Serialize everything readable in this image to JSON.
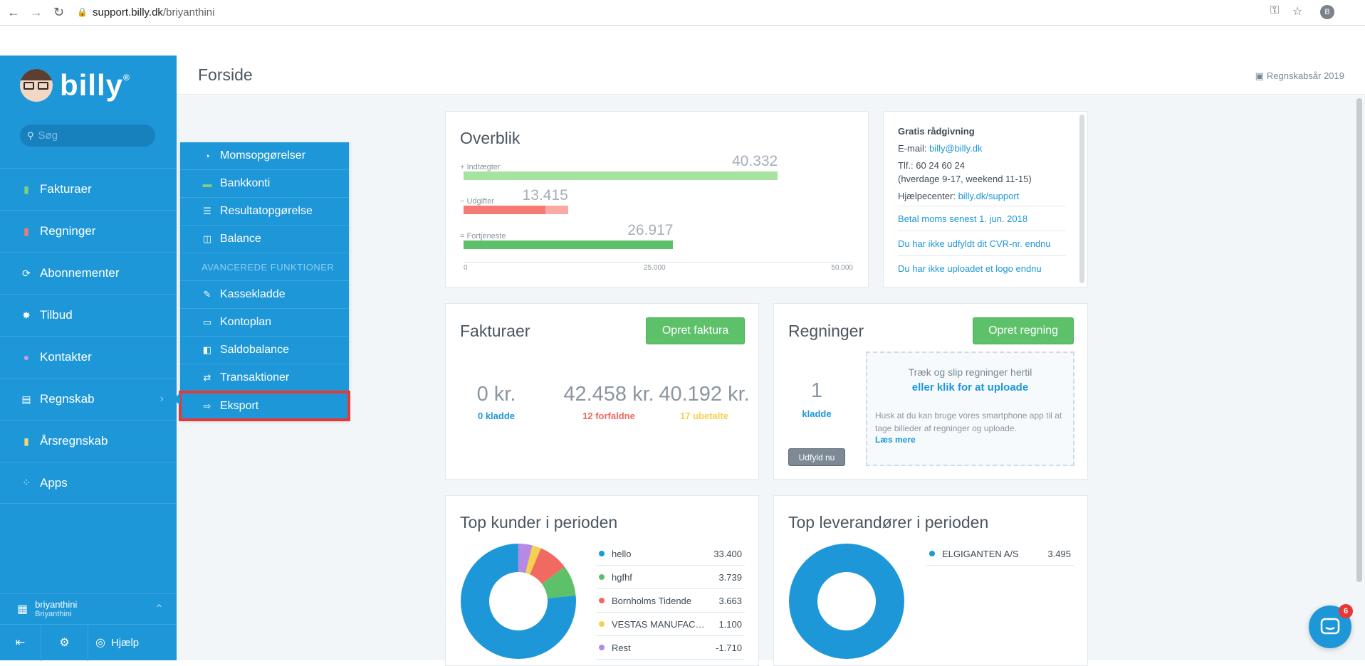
{
  "browser": {
    "url_host": "support.billy.dk",
    "url_path": "/briyanthini",
    "profile_initial": "B"
  },
  "sidebar": {
    "brand": "billy",
    "brand_mark": "®",
    "search_placeholder": "Søg",
    "items": [
      {
        "label": "Fakturaer",
        "icon": "document-icon",
        "color": "#7fd07a"
      },
      {
        "label": "Regninger",
        "icon": "receipt-icon",
        "color": "#f47a72"
      },
      {
        "label": "Abonnementer",
        "icon": "recurring-icon",
        "color": "#cfe8f6"
      },
      {
        "label": "Tilbud",
        "icon": "badge-icon",
        "color": "#ffffff"
      },
      {
        "label": "Kontakter",
        "icon": "person-icon",
        "color": "#c6a3e8"
      },
      {
        "label": "Regnskab",
        "icon": "ledger-icon",
        "color": "#cfe8f6"
      },
      {
        "label": "Årsregnskab",
        "icon": "annual-report-icon",
        "color": "#f7d572"
      },
      {
        "label": "Apps",
        "icon": "apps-icon",
        "color": "#cfe8f6"
      }
    ],
    "user": {
      "name": "briyanthini",
      "org": "Briyanthini"
    },
    "help_label": "Hjælp"
  },
  "flyout": {
    "items": [
      {
        "label": "Momsopgørelser",
        "icon": "pie-icon"
      },
      {
        "label": "Bankkonti",
        "icon": "bank-icon"
      },
      {
        "label": "Resultatopgørelse",
        "icon": "income-statement-icon"
      },
      {
        "label": "Balance",
        "icon": "balance-icon"
      }
    ],
    "section_header": "AVANCEREDE FUNKTIONER",
    "advanced": [
      {
        "label": "Kassekladde",
        "icon": "journal-icon"
      },
      {
        "label": "Kontoplan",
        "icon": "chart-of-accounts-icon"
      },
      {
        "label": "Saldobalance",
        "icon": "trial-balance-icon"
      },
      {
        "label": "Transaktioner",
        "icon": "transactions-icon"
      },
      {
        "label": "Eksport",
        "icon": "export-icon"
      }
    ]
  },
  "header": {
    "title": "Forside",
    "fiscal_year": "Regnskabsår 2019"
  },
  "overview": {
    "title": "Overblik",
    "rows": [
      {
        "sign": "+",
        "label": "Indtægter",
        "value": "40.332",
        "amount": 40332,
        "color": "#a6e3a1"
      },
      {
        "sign": "−",
        "label": "Udgifter",
        "value": "13.415",
        "amount": 13415,
        "color": "#f47a72",
        "paid_amount": 10500,
        "unpaid_color": "#f9aaa5"
      },
      {
        "sign": "=",
        "label": "Fortjeneste",
        "value": "26.917",
        "amount": 26917,
        "color": "#5cc168"
      }
    ],
    "axis_ticks": [
      "0",
      "25.000",
      "50.000"
    ],
    "axis_max": 50000
  },
  "info": {
    "title": "Gratis rådgivning",
    "email_label": "E-mail:",
    "email": "billy@billy.dk",
    "phone": "Tlf.: 60 24 60 24",
    "hours": "(hverdage 9-17, weekend 11-15)",
    "help_label": "Hjælpecenter:",
    "help_link": "billy.dk/support",
    "links": [
      "Betal moms senest 1. jun. 2018",
      "Du har ikke udfyldt dit CVR-nr. endnu",
      "Du har ikke uploadet et logo endnu"
    ]
  },
  "invoices": {
    "title": "Fakturaer",
    "button": "Opret faktura",
    "stats": [
      {
        "amount": "0 kr.",
        "sub": "0 kladde",
        "color": "#1e97d8"
      },
      {
        "amount": "42.458 kr.",
        "sub": "12 forfaldne",
        "color": "#f06a62"
      },
      {
        "amount": "40.192 kr.",
        "sub": "17 ubetalte",
        "color": "#f7d04f"
      }
    ]
  },
  "bills": {
    "title": "Regninger",
    "button": "Opret regning",
    "draft_count": "1",
    "draft_label": "kladde",
    "fill_button": "Udfyld nu",
    "drop_line1": "Træk og slip regninger hertil",
    "drop_line2": "eller klik for at uploade",
    "drop_hint": "Husk at du kan bruge vores smartphone app til at tage billeder af regninger og uploade.",
    "drop_more": "Læs mere"
  },
  "top_customers": {
    "title": "Top kunder i perioden",
    "rows": [
      {
        "name": "hello",
        "value": "33.400",
        "color": "#1e97d8"
      },
      {
        "name": "hgfhf",
        "value": "3.739",
        "color": "#5cc168"
      },
      {
        "name": "Bornholms Tidende",
        "value": "3.663",
        "color": "#f06a62"
      },
      {
        "name": "VESTAS MANUFAC…",
        "value": "1.100",
        "color": "#f7d04f"
      },
      {
        "name": "Rest",
        "value": "-1.710",
        "color": "#b48ae6"
      }
    ],
    "slices": [
      {
        "value": 33400,
        "color": "#1e97d8"
      },
      {
        "value": 3739,
        "color": "#5cc168"
      },
      {
        "value": 3663,
        "color": "#f06a62"
      },
      {
        "value": 1100,
        "color": "#f7d04f"
      },
      {
        "value": 1710,
        "color": "#b48ae6"
      }
    ]
  },
  "top_suppliers": {
    "title": "Top leverandører i perioden",
    "rows": [
      {
        "name": "ELGIGANTEN A/S",
        "value": "3.495",
        "color": "#1e97d8"
      }
    ]
  },
  "chat": {
    "badge": "6"
  }
}
